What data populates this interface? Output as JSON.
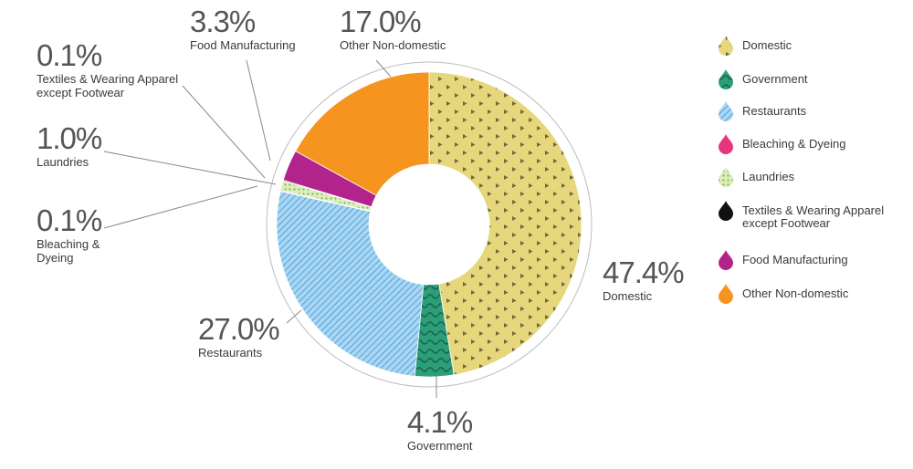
{
  "chart_data": {
    "type": "pie",
    "variant": "donut",
    "title": "",
    "slices": [
      {
        "name": "Domestic",
        "value": 47.4,
        "label": "47.4%",
        "color": "#e6d77c",
        "pattern": "triangles",
        "pattern_color": "#6d6a3e"
      },
      {
        "name": "Government",
        "value": 4.1,
        "label": "4.1%",
        "color": "#2c9f7a",
        "pattern": "waves",
        "pattern_color": "#1a6b4e"
      },
      {
        "name": "Restaurants",
        "value": 27.0,
        "label": "27.0%",
        "color": "#a9d6f2",
        "pattern": "diagonal-lines",
        "pattern_color": "#2f8ed1"
      },
      {
        "name": "Bleaching & Dyeing",
        "value": 0.1,
        "label": "0.1%",
        "color": "#e6347f",
        "pattern": "solid",
        "pattern_color": "#e6347f"
      },
      {
        "name": "Laundries",
        "value": 1.0,
        "label": "1.0%",
        "color": "#dcecc0",
        "pattern": "dots",
        "pattern_color": "#7fbf3a"
      },
      {
        "name": "Textiles & Wearing Apparel except Footwear",
        "value": 0.1,
        "label": "0.1%",
        "color": "#111111",
        "pattern": "solid",
        "pattern_color": "#111111"
      },
      {
        "name": "Food Manufacturing",
        "value": 3.3,
        "label": "3.3%",
        "color": "#b3238c",
        "pattern": "solid",
        "pattern_color": "#b3238c"
      },
      {
        "name": "Other Non-domestic",
        "value": 17.0,
        "label": "17.0%",
        "color": "#f5951f",
        "pattern": "solid",
        "pattern_color": "#f5951f"
      }
    ],
    "callouts": [
      {
        "slice": "Domestic",
        "pct": "47.4%",
        "lines": [
          "Domestic"
        ]
      },
      {
        "slice": "Government",
        "pct": "4.1%",
        "lines": [
          "Government"
        ]
      },
      {
        "slice": "Restaurants",
        "pct": "27.0%",
        "lines": [
          "Restaurants"
        ]
      },
      {
        "slice": "Bleaching & Dyeing",
        "pct": "0.1%",
        "lines": [
          "Bleaching &",
          "Dyeing"
        ]
      },
      {
        "slice": "Laundries",
        "pct": "1.0%",
        "lines": [
          "Laundries"
        ]
      },
      {
        "slice": "Textiles & Wearing Apparel except Footwear",
        "pct": "0.1%",
        "lines": [
          "Textiles & Wearing Apparel",
          "except Footwear"
        ]
      },
      {
        "slice": "Food Manufacturing",
        "pct": "3.3%",
        "lines": [
          "Food Manufacturing"
        ]
      },
      {
        "slice": "Other Non-domestic",
        "pct": "17.0%",
        "lines": [
          "Other Non-domestic"
        ]
      }
    ],
    "legend": {
      "position": "right",
      "items": [
        {
          "lines": [
            "Domestic"
          ],
          "color": "#e6d77c",
          "pattern": "triangles"
        },
        {
          "lines": [
            "Government"
          ],
          "color": "#2c9f7a",
          "pattern": "waves"
        },
        {
          "lines": [
            "Restaurants"
          ],
          "color": "#a9d6f2",
          "pattern": "diagonal-lines"
        },
        {
          "lines": [
            "Bleaching & Dyeing"
          ],
          "color": "#e6347f",
          "pattern": "solid"
        },
        {
          "lines": [
            "Laundries"
          ],
          "color": "#dcecc0",
          "pattern": "dots"
        },
        {
          "lines": [
            "Textiles & Wearing Apparel",
            "except Footwear"
          ],
          "color": "#111111",
          "pattern": "solid"
        },
        {
          "lines": [
            "Food Manufacturing"
          ],
          "color": "#b3238c",
          "pattern": "solid"
        },
        {
          "lines": [
            "Other Non-domestic"
          ],
          "color": "#f5951f",
          "pattern": "solid"
        }
      ]
    }
  }
}
